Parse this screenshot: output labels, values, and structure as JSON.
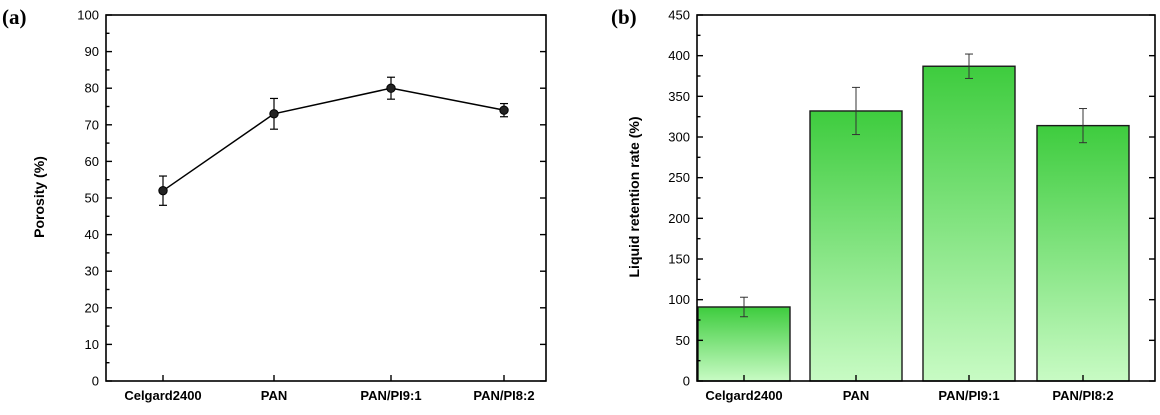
{
  "chart_data": [
    {
      "panel_label": "(a)",
      "type": "line",
      "categories": [
        "Celgard2400",
        "PAN",
        "PAN/PI9:1",
        "PAN/PI8:2"
      ],
      "values": [
        52,
        73,
        80,
        74
      ],
      "errors": [
        4,
        4.2,
        3,
        1.8
      ],
      "xlabel": "",
      "ylabel": "Porosity (%)",
      "ylim": [
        0,
        100
      ],
      "yticks": [
        0,
        10,
        20,
        30,
        40,
        50,
        60,
        70,
        80,
        90,
        100
      ],
      "line_color": "#000000",
      "marker_color": "#222222"
    },
    {
      "panel_label": "(b)",
      "type": "bar",
      "categories": [
        "Celgard2400",
        "PAN",
        "PAN/PI9:1",
        "PAN/PI8:2"
      ],
      "values": [
        91,
        332,
        387,
        314
      ],
      "errors": [
        12,
        29,
        15,
        21
      ],
      "xlabel": "",
      "ylabel": "Liquid retention rate (%)",
      "ylim": [
        0,
        450
      ],
      "yticks": [
        0,
        50,
        100,
        150,
        200,
        250,
        300,
        350,
        400,
        450
      ],
      "bar_color_top": "#3ecc3e",
      "bar_color_bottom": "#c8fbc4"
    }
  ]
}
